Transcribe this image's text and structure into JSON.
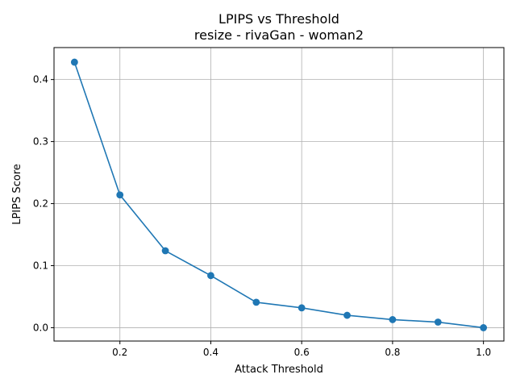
{
  "chart_data": {
    "type": "line",
    "title": "LPIPS vs Threshold",
    "subtitle": "resize - rivaGan - woman2",
    "xlabel": "Attack Threshold",
    "ylabel": "LPIPS Score",
    "xlim": [
      0.055,
      1.045
    ],
    "ylim": [
      -0.0215,
      0.4515
    ],
    "xticks": [
      0.2,
      0.4,
      0.6,
      0.8,
      1.0
    ],
    "xtick_labels": [
      "0.2",
      "0.4",
      "0.6",
      "0.8",
      "1.0"
    ],
    "yticks": [
      0.0,
      0.1,
      0.2,
      0.3,
      0.4
    ],
    "ytick_labels": [
      "0.0",
      "0.1",
      "0.2",
      "0.3",
      "0.4"
    ],
    "grid": true,
    "legend": "none",
    "series": [
      {
        "color": "#1f77b4",
        "marker": "circle",
        "x": [
          0.1,
          0.2,
          0.3,
          0.4,
          0.5,
          0.6,
          0.7,
          0.8,
          0.9,
          1.0
        ],
        "y": [
          0.428,
          0.214,
          0.124,
          0.084,
          0.041,
          0.032,
          0.02,
          0.013,
          0.009,
          0.0
        ]
      }
    ]
  }
}
